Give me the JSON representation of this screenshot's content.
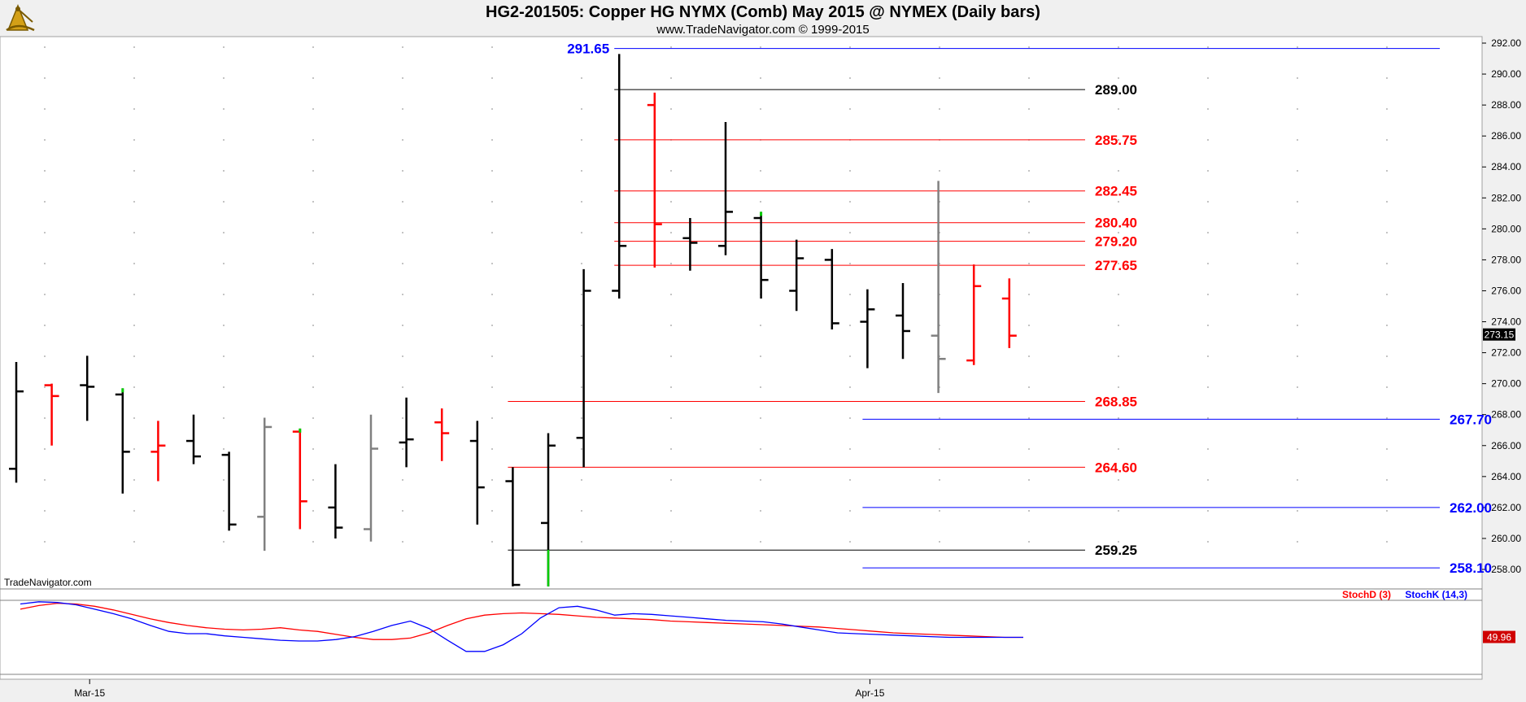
{
  "header": {
    "title": "HG2-201505:  Copper HG NYMX (Comb) May 2015 @ NYMEX  (Daily bars)",
    "subtitle": "www.TradeNavigator.com © 1999-2015",
    "logo_icon": "sextant-logo-icon"
  },
  "watermark": "TradeNavigator.com",
  "colors": {
    "up_bar": "#000000",
    "down_bar": "#ff0000",
    "neutral_bar": "#808080",
    "highlight": "#00cc00",
    "resistance": "#ff0000",
    "support": "#0000ff",
    "key_level": "#000000",
    "stoch_d": "#ff0000",
    "stoch_k": "#0000ff"
  },
  "chart_data": [
    {
      "type": "ohlc",
      "xlabel": "",
      "ylabel": "",
      "x_tick_labels": [
        {
          "label": "Mar-15",
          "bar": 2
        },
        {
          "label": "Apr-15",
          "bar": 24
        }
      ],
      "ylim": [
        256.6,
        292.4
      ],
      "y_ticks": [
        "258.00",
        "260.00",
        "262.00",
        "264.00",
        "266.00",
        "268.00",
        "270.00",
        "272.00",
        "274.00",
        "276.00",
        "278.00",
        "280.00",
        "282.00",
        "284.00",
        "286.00",
        "288.00",
        "290.00",
        "292.00"
      ],
      "last_price": "273.15",
      "bars": [
        {
          "o": 264.5,
          "h": 271.4,
          "l": 263.6,
          "c": 269.5,
          "color": "up_bar"
        },
        {
          "o": 269.9,
          "h": 270.0,
          "l": 266.0,
          "c": 269.2,
          "color": "down_bar"
        },
        {
          "o": 269.9,
          "h": 271.8,
          "l": 267.6,
          "c": 269.8,
          "color": "up_bar"
        },
        {
          "o": 269.3,
          "h": 269.7,
          "l": 262.9,
          "c": 265.6,
          "color": "up_bar",
          "mark_high": true
        },
        {
          "o": 265.6,
          "h": 267.6,
          "l": 263.7,
          "c": 266.0,
          "color": "down_bar"
        },
        {
          "o": 266.3,
          "h": 268.0,
          "l": 264.8,
          "c": 265.3,
          "color": "up_bar"
        },
        {
          "o": 265.4,
          "h": 265.6,
          "l": 260.5,
          "c": 260.9,
          "color": "up_bar"
        },
        {
          "o": 261.4,
          "h": 267.8,
          "l": 259.2,
          "c": 267.2,
          "color": "neutral_bar"
        },
        {
          "o": 266.9,
          "h": 267.1,
          "l": 260.6,
          "c": 262.4,
          "color": "down_bar",
          "mark_high": true
        },
        {
          "o": 262.0,
          "h": 264.8,
          "l": 260.0,
          "c": 260.7,
          "color": "up_bar"
        },
        {
          "o": 260.6,
          "h": 268.0,
          "l": 259.8,
          "c": 265.8,
          "color": "neutral_bar"
        },
        {
          "o": 266.2,
          "h": 269.1,
          "l": 264.6,
          "c": 266.4,
          "color": "up_bar"
        },
        {
          "o": 267.5,
          "h": 268.4,
          "l": 265.0,
          "c": 266.8,
          "color": "down_bar"
        },
        {
          "o": 266.3,
          "h": 267.6,
          "l": 260.9,
          "c": 263.3,
          "color": "up_bar"
        },
        {
          "o": 263.7,
          "h": 264.6,
          "l": 256.9,
          "c": 257.0,
          "color": "up_bar"
        },
        {
          "o": 261.0,
          "h": 266.8,
          "l": 256.9,
          "c": 266.0,
          "color": "up_bar",
          "mark_low": true
        },
        {
          "o": 266.5,
          "h": 277.4,
          "l": 264.6,
          "c": 276.0,
          "color": "up_bar"
        },
        {
          "o": 276.0,
          "h": 291.3,
          "l": 275.5,
          "c": 278.9,
          "color": "up_bar"
        },
        {
          "o": 288.0,
          "h": 288.8,
          "l": 277.5,
          "c": 280.3,
          "color": "down_bar"
        },
        {
          "o": 279.4,
          "h": 280.7,
          "l": 277.3,
          "c": 279.1,
          "color": "up_bar"
        },
        {
          "o": 278.9,
          "h": 286.9,
          "l": 278.3,
          "c": 281.1,
          "color": "up_bar"
        },
        {
          "o": 280.7,
          "h": 281.1,
          "l": 275.5,
          "c": 276.7,
          "color": "up_bar",
          "mark_high": true
        },
        {
          "o": 276.0,
          "h": 279.3,
          "l": 274.7,
          "c": 278.1,
          "color": "up_bar"
        },
        {
          "o": 278.0,
          "h": 278.7,
          "l": 273.5,
          "c": 273.9,
          "color": "up_bar"
        },
        {
          "o": 274.0,
          "h": 276.1,
          "l": 271.0,
          "c": 274.8,
          "color": "up_bar"
        },
        {
          "o": 274.4,
          "h": 276.5,
          "l": 271.6,
          "c": 273.4,
          "color": "up_bar"
        },
        {
          "o": 273.1,
          "h": 283.1,
          "l": 269.4,
          "c": 271.6,
          "color": "neutral_bar"
        },
        {
          "o": 271.5,
          "h": 277.7,
          "l": 271.2,
          "c": 276.3,
          "color": "down_bar"
        },
        {
          "o": 275.5,
          "h": 276.8,
          "l": 272.3,
          "c": 273.1,
          "color": "down_bar"
        }
      ],
      "levels": [
        {
          "value": 291.65,
          "label": "291.65",
          "color": "support",
          "from_bar": 17,
          "to_bar": 40,
          "label_side": "left"
        },
        {
          "value": 289.0,
          "label": "289.00",
          "color": "key_level",
          "from_bar": 17,
          "to_bar": 30,
          "label_side": "right"
        },
        {
          "value": 285.75,
          "label": "285.75",
          "color": "resistance",
          "from_bar": 17,
          "to_bar": 30,
          "label_side": "right"
        },
        {
          "value": 282.45,
          "label": "282.45",
          "color": "resistance",
          "from_bar": 17,
          "to_bar": 30,
          "label_side": "right"
        },
        {
          "value": 280.4,
          "label": "280.40",
          "color": "resistance",
          "from_bar": 17,
          "to_bar": 30,
          "label_side": "right"
        },
        {
          "value": 279.2,
          "label": "279.20",
          "color": "resistance",
          "from_bar": 17,
          "to_bar": 30,
          "label_side": "right"
        },
        {
          "value": 277.65,
          "label": "277.65",
          "color": "resistance",
          "from_bar": 17,
          "to_bar": 30,
          "label_side": "right"
        },
        {
          "value": 268.85,
          "label": "268.85",
          "color": "resistance",
          "from_bar": 14,
          "to_bar": 30,
          "label_side": "right"
        },
        {
          "value": 267.7,
          "label": "267.70",
          "color": "support",
          "from_bar": 24,
          "to_bar": 40,
          "label_side": "right"
        },
        {
          "value": 264.6,
          "label": "264.60",
          "color": "resistance",
          "from_bar": 14,
          "to_bar": 30,
          "label_side": "right"
        },
        {
          "value": 262.0,
          "label": "262.00",
          "color": "support",
          "from_bar": 24,
          "to_bar": 40,
          "label_side": "right"
        },
        {
          "value": 259.25,
          "label": "259.25",
          "color": "key_level",
          "from_bar": 14,
          "to_bar": 30,
          "label_side": "right"
        },
        {
          "value": 258.1,
          "label": "258.10",
          "color": "support",
          "from_bar": 24,
          "to_bar": 40,
          "label_side": "right"
        }
      ]
    },
    {
      "type": "line",
      "ylim": [
        0,
        100
      ],
      "last_value": "49.96",
      "series": [
        {
          "name": "StochD (3)",
          "color": "stoch_d",
          "values": [
            88,
            93,
            96,
            95,
            92,
            87,
            81,
            75,
            70,
            66,
            63,
            61,
            60,
            61,
            63,
            60,
            58,
            54,
            50,
            47,
            47,
            49,
            56,
            66,
            75,
            80,
            82,
            83,
            82,
            81,
            79,
            77,
            76,
            75,
            74,
            72,
            71,
            70,
            69,
            68,
            67,
            66,
            65,
            64,
            62,
            60,
            58,
            56,
            55,
            54,
            53,
            52,
            51,
            50,
            50
          ]
        },
        {
          "name": "StochK (14,3)",
          "color": "stoch_k",
          "values": [
            95,
            98,
            97,
            94,
            88,
            82,
            75,
            66,
            58,
            55,
            55,
            52,
            50,
            48,
            46,
            45,
            45,
            47,
            51,
            58,
            66,
            72,
            62,
            46,
            31,
            31,
            40,
            55,
            76,
            90,
            92,
            87,
            80,
            82,
            81,
            79,
            77,
            75,
            73,
            72,
            71,
            68,
            64,
            60,
            56,
            55,
            54,
            53,
            52,
            51,
            50,
            50,
            50,
            50,
            50
          ]
        }
      ]
    }
  ]
}
